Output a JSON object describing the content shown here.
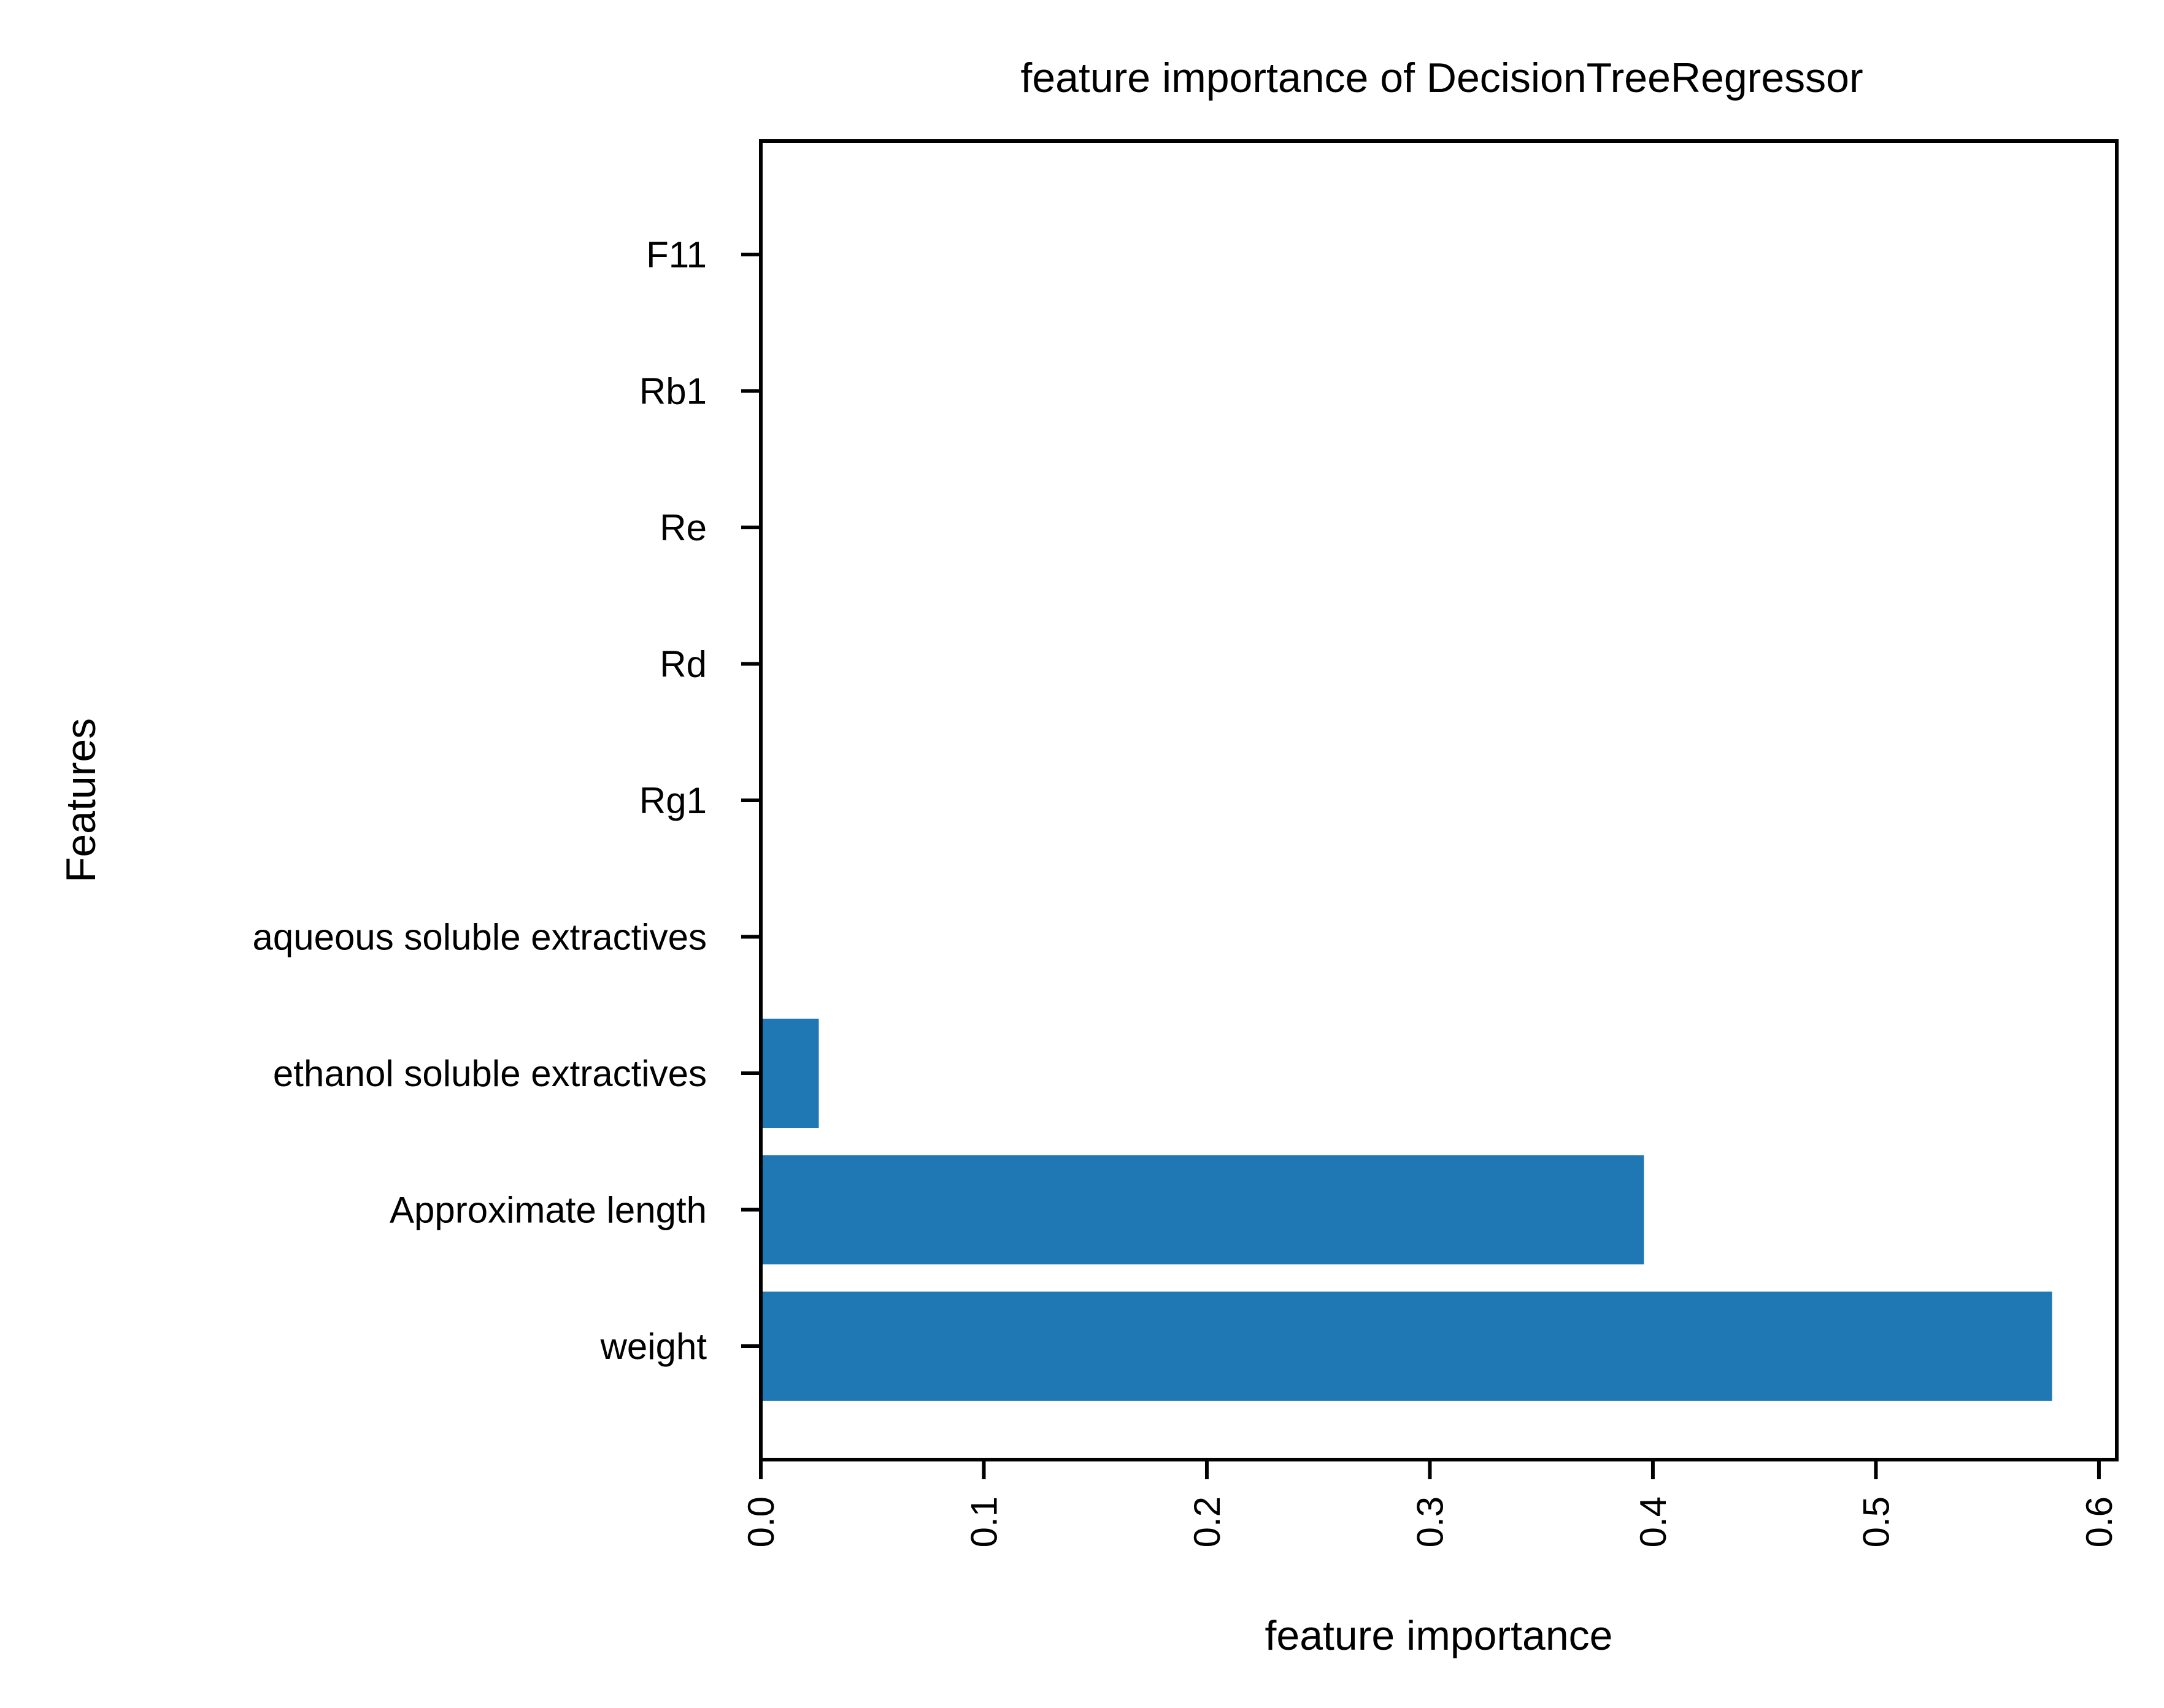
{
  "chart_data": {
    "type": "bar",
    "orientation": "horizontal",
    "title": "feature importance of DecisionTreeRegressor",
    "xlabel": "feature importance",
    "ylabel": "Features",
    "categories": [
      "weight",
      "Approximate length",
      "ethanol soluble extractives",
      "aqueous soluble extractives",
      "Rg1",
      "Rd",
      "Re",
      "Rb1",
      "F11"
    ],
    "values": [
      0.579,
      0.396,
      0.026,
      0.0,
      0.0,
      0.0,
      0.0,
      0.0,
      0.0
    ],
    "xlim": [
      0.0,
      0.608
    ],
    "xticks": [
      "0.0",
      "0.1",
      "0.2",
      "0.3",
      "0.4",
      "0.5",
      "0.6"
    ],
    "xtick_values": [
      0.0,
      0.1,
      0.2,
      0.3,
      0.4,
      0.5,
      0.6
    ],
    "grid": false,
    "bar_color": "#1f77b4"
  }
}
